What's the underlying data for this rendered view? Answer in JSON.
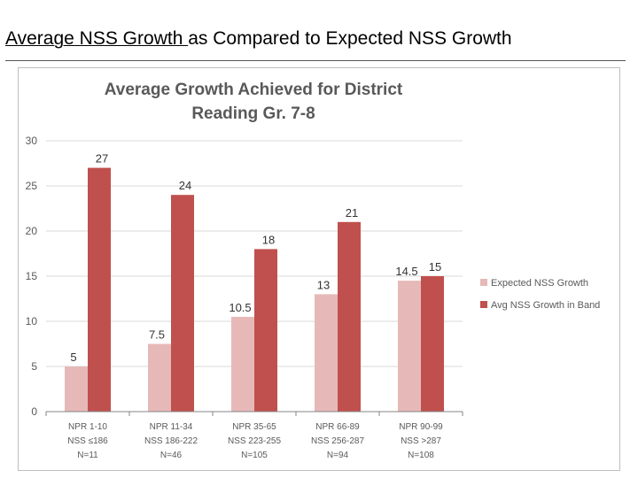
{
  "slide": {
    "title_part1": "Average NSS Growth ",
    "title_part2": "as Compared to Expected NSS Growth"
  },
  "colors": {
    "expected": "#e6b9b8",
    "actual": "#c0504d",
    "gridline": "#d9d9d9",
    "axis": "#868686",
    "text": "#595959"
  },
  "chart_data": {
    "type": "bar",
    "title": [
      "Average Growth Achieved for District",
      "Reading Gr. 7-8"
    ],
    "categories": [
      [
        "NPR 1-10",
        "NSS ≤186",
        "N=11"
      ],
      [
        "NPR 11-34",
        "NSS 186-222",
        "N=46"
      ],
      [
        "NPR 35-65",
        "NSS 223-255",
        "N=105"
      ],
      [
        "NPR 66-89",
        "NSS 256-287",
        "N=94"
      ],
      [
        "NPR 90-99",
        "NSS >287",
        "N=108"
      ]
    ],
    "series": [
      {
        "name": "Expected NSS Growth",
        "values": [
          5,
          7.5,
          10.5,
          13,
          14.5
        ]
      },
      {
        "name": "Avg NSS Growth in Band",
        "values": [
          27,
          24,
          18,
          21,
          15
        ]
      }
    ],
    "ylim": [
      0,
      30
    ],
    "yticks": [
      0,
      5,
      10,
      15,
      20,
      25,
      30
    ],
    "grid": true,
    "legend_position": "right"
  }
}
